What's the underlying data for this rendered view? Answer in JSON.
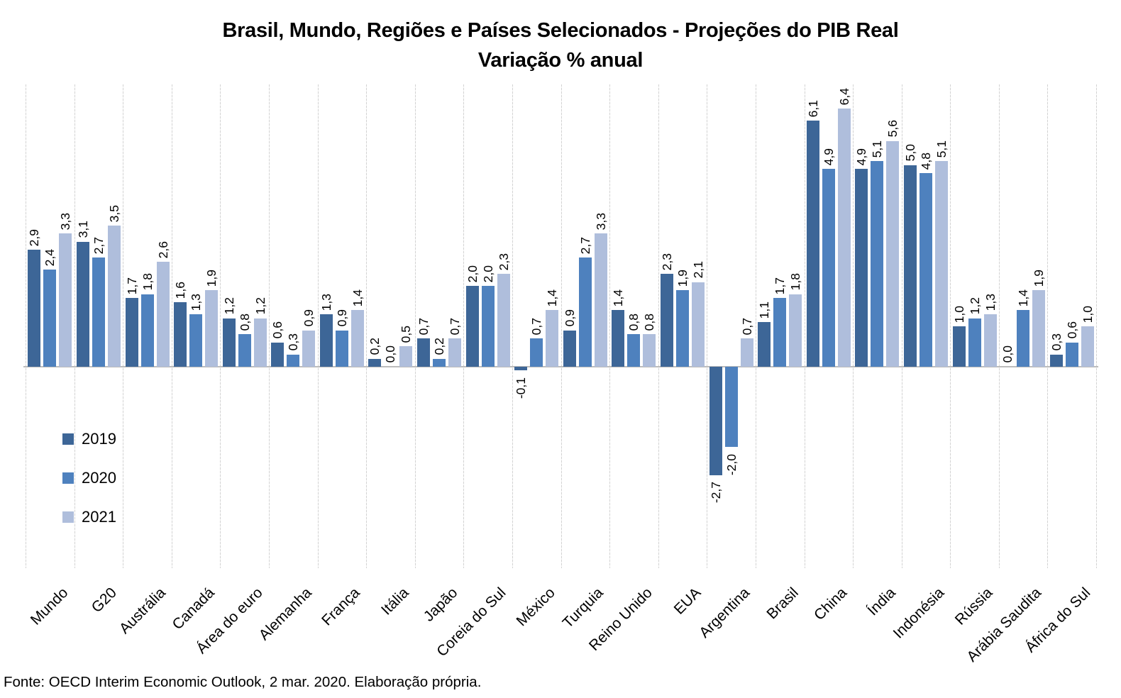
{
  "chart_data": {
    "type": "bar",
    "title": "Brasil, Mundo, Regiões e Países Selecionados - Projeções do PIB Real",
    "subtitle": "Variação % anual",
    "xlabel": "",
    "ylabel": "",
    "ylim": [
      -5,
      7
    ],
    "grid": "vertical-only",
    "legend_position": "middle-left",
    "value_label_format": "one-decimal-comma",
    "value_label_orientation": "rotated-90-up",
    "category_label_orientation": "rotated-45",
    "categories": [
      "Mundo",
      "G20",
      "Austrália",
      "Canadá",
      "Área do euro",
      "Alemanha",
      "França",
      "Itália",
      "Japão",
      "Coreia do Sul",
      "México",
      "Turquia",
      "Reino Unido",
      "EUA",
      "Argentina",
      "Brasil",
      "China",
      "Índia",
      "Indonésia",
      "Rússia",
      "Arábia Saudita",
      "África do Sul"
    ],
    "series": [
      {
        "name": "2019",
        "color": "#3D6697",
        "values": [
          2.9,
          3.1,
          1.7,
          1.6,
          1.2,
          0.6,
          1.3,
          0.2,
          0.7,
          2.0,
          -0.1,
          0.9,
          1.4,
          2.3,
          -2.7,
          1.1,
          6.1,
          4.9,
          5.0,
          1.0,
          0.0,
          0.3
        ]
      },
      {
        "name": "2020",
        "color": "#4E81BE",
        "values": [
          2.4,
          2.7,
          1.8,
          1.3,
          0.8,
          0.3,
          0.9,
          0.0,
          0.2,
          2.0,
          0.7,
          2.7,
          0.8,
          1.9,
          -2.0,
          1.7,
          4.9,
          5.1,
          4.8,
          1.2,
          1.4,
          0.6
        ]
      },
      {
        "name": "2021",
        "color": "#AFBEDC",
        "values": [
          3.3,
          3.5,
          2.6,
          1.9,
          1.2,
          0.9,
          1.4,
          0.5,
          0.7,
          2.3,
          1.4,
          3.3,
          0.8,
          2.1,
          0.7,
          1.8,
          6.4,
          5.6,
          5.1,
          1.3,
          1.9,
          1.0
        ]
      }
    ],
    "source": "Fonte: OECD Interim Economic Outlook, 2 mar. 2020. Elaboração própria.",
    "gridline_color": "#d9d9d9",
    "axis_line_color": "#bcbcbc"
  }
}
